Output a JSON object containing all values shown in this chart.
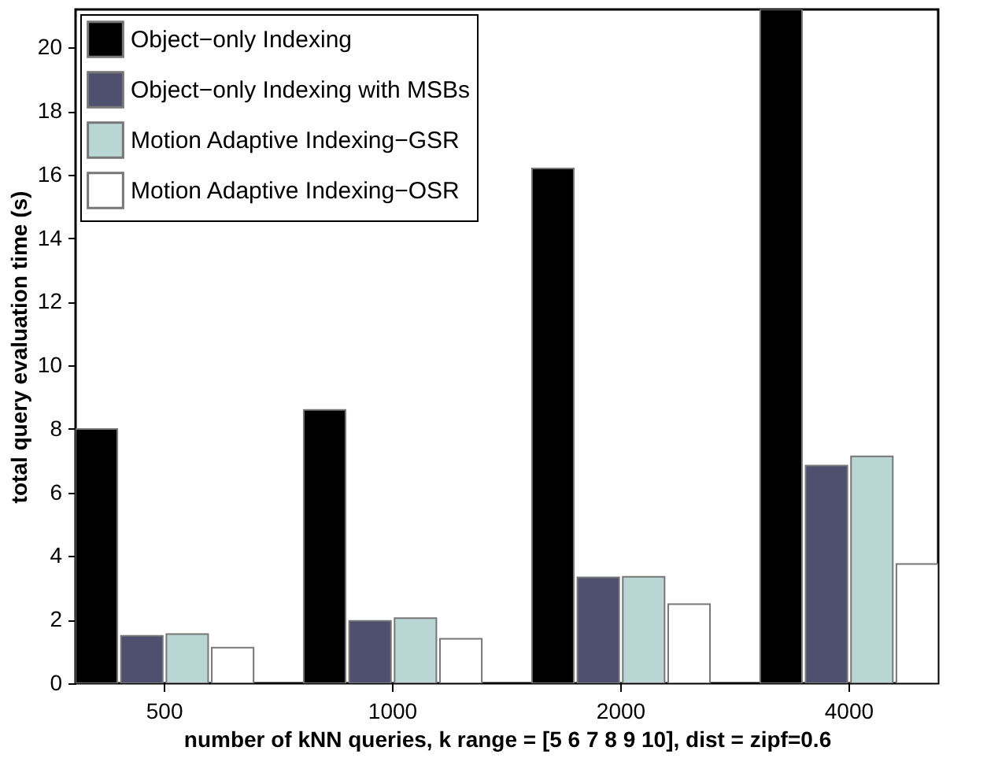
{
  "chart_data": {
    "type": "bar",
    "xlabel": "number of kNN queries, k range = [5 6 7 8 9 10], dist = zipf=0.6",
    "ylabel": "total query evaluation time (s)",
    "categories": [
      "500",
      "1000",
      "2000",
      "4000"
    ],
    "series": [
      {
        "name": "Object−only Indexing",
        "color": "#000000",
        "values": [
          8.0,
          8.6,
          16.2,
          21.2
        ]
      },
      {
        "name": "Object−only Indexing with MSBs",
        "color": "#4f5070",
        "values": [
          1.49,
          1.96,
          3.33,
          6.85
        ]
      },
      {
        "name": "Motion Adaptive Indexing−GSR",
        "color": "#b9d5d4",
        "values": [
          1.55,
          2.05,
          3.35,
          7.14
        ]
      },
      {
        "name": "Motion Adaptive Indexing−OSR",
        "color": "#ffffff",
        "values": [
          1.12,
          1.4,
          2.49,
          3.75
        ]
      }
    ],
    "ylim": [
      0,
      21.2
    ],
    "yticks": [
      0,
      2,
      4,
      6,
      8,
      10,
      12,
      14,
      16,
      18,
      20
    ],
    "grid": false,
    "legend": "top left"
  }
}
